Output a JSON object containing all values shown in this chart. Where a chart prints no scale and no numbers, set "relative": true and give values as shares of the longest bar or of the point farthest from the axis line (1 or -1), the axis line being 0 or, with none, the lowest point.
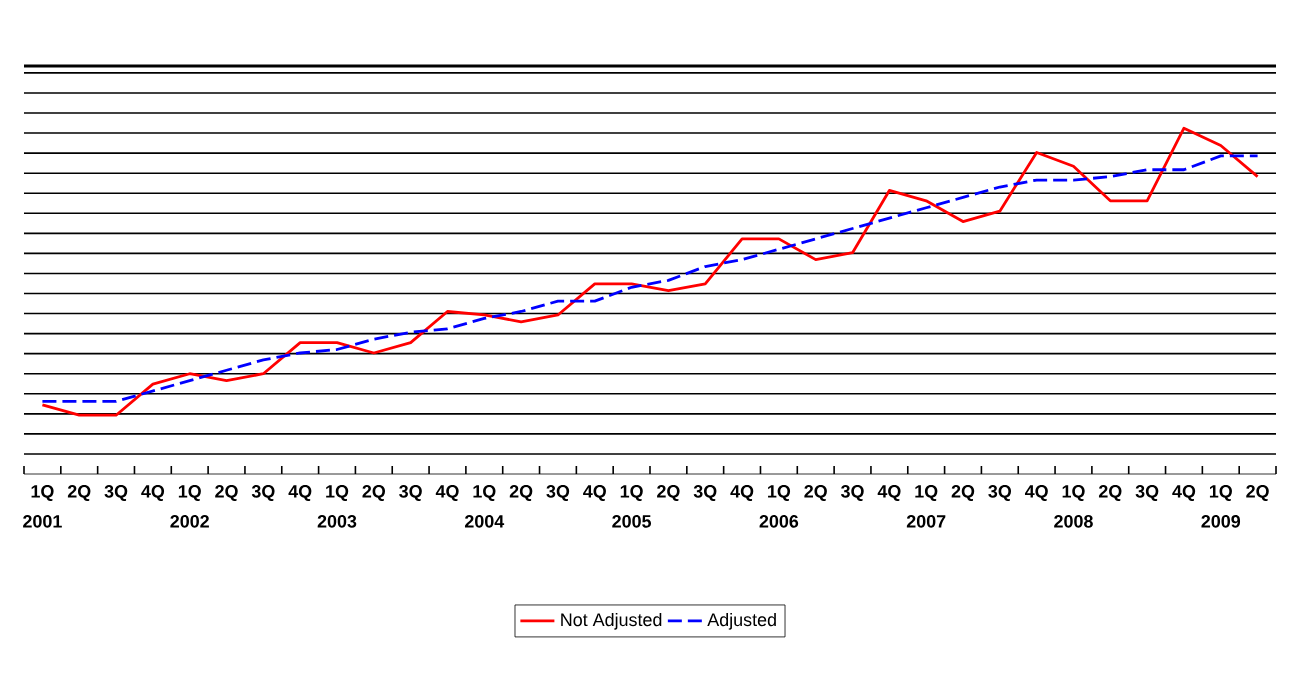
{
  "chart_data": {
    "type": "line",
    "relative": true,
    "grid": "y",
    "legend": "bottom",
    "marker": "none",
    "categories": [
      "1Q",
      "2Q",
      "3Q",
      "4Q",
      "1Q",
      "2Q",
      "3Q",
      "4Q",
      "1Q",
      "2Q",
      "3Q",
      "4Q",
      "1Q",
      "2Q",
      "3Q",
      "4Q",
      "1Q",
      "2Q",
      "3Q",
      "4Q",
      "1Q",
      "2Q",
      "3Q",
      "4Q",
      "1Q",
      "2Q",
      "3Q",
      "4Q",
      "1Q",
      "2Q",
      "3Q",
      "4Q",
      "1Q",
      "2Q"
    ],
    "annotations": [
      "2001",
      "2002",
      "2003",
      "2004",
      "2005",
      "2006",
      "2007",
      "2008",
      "2009"
    ],
    "series": [
      {
        "name": "Not Adjusted",
        "color": "#ff0000",
        "line_style": "solid",
        "values": [
          0.2,
          0.17,
          0.17,
          0.26,
          0.29,
          0.27,
          0.29,
          0.38,
          0.38,
          0.35,
          0.38,
          0.47,
          0.46,
          0.44,
          0.46,
          0.55,
          0.55,
          0.53,
          0.55,
          0.68,
          0.68,
          0.62,
          0.64,
          0.82,
          0.79,
          0.73,
          0.76,
          0.93,
          0.89,
          0.79,
          0.79,
          1.0,
          0.95,
          0.86
        ]
      },
      {
        "name": "Adjusted",
        "color": "#0000ff",
        "line_style": "dashed",
        "values": [
          0.21,
          0.21,
          0.21,
          0.24,
          0.27,
          0.3,
          0.33,
          0.35,
          0.36,
          0.39,
          0.41,
          0.42,
          0.45,
          0.47,
          0.5,
          0.5,
          0.54,
          0.56,
          0.6,
          0.62,
          0.65,
          0.68,
          0.71,
          0.74,
          0.77,
          0.8,
          0.83,
          0.85,
          0.85,
          0.86,
          0.88,
          0.88,
          0.92,
          0.92
        ]
      }
    ]
  }
}
